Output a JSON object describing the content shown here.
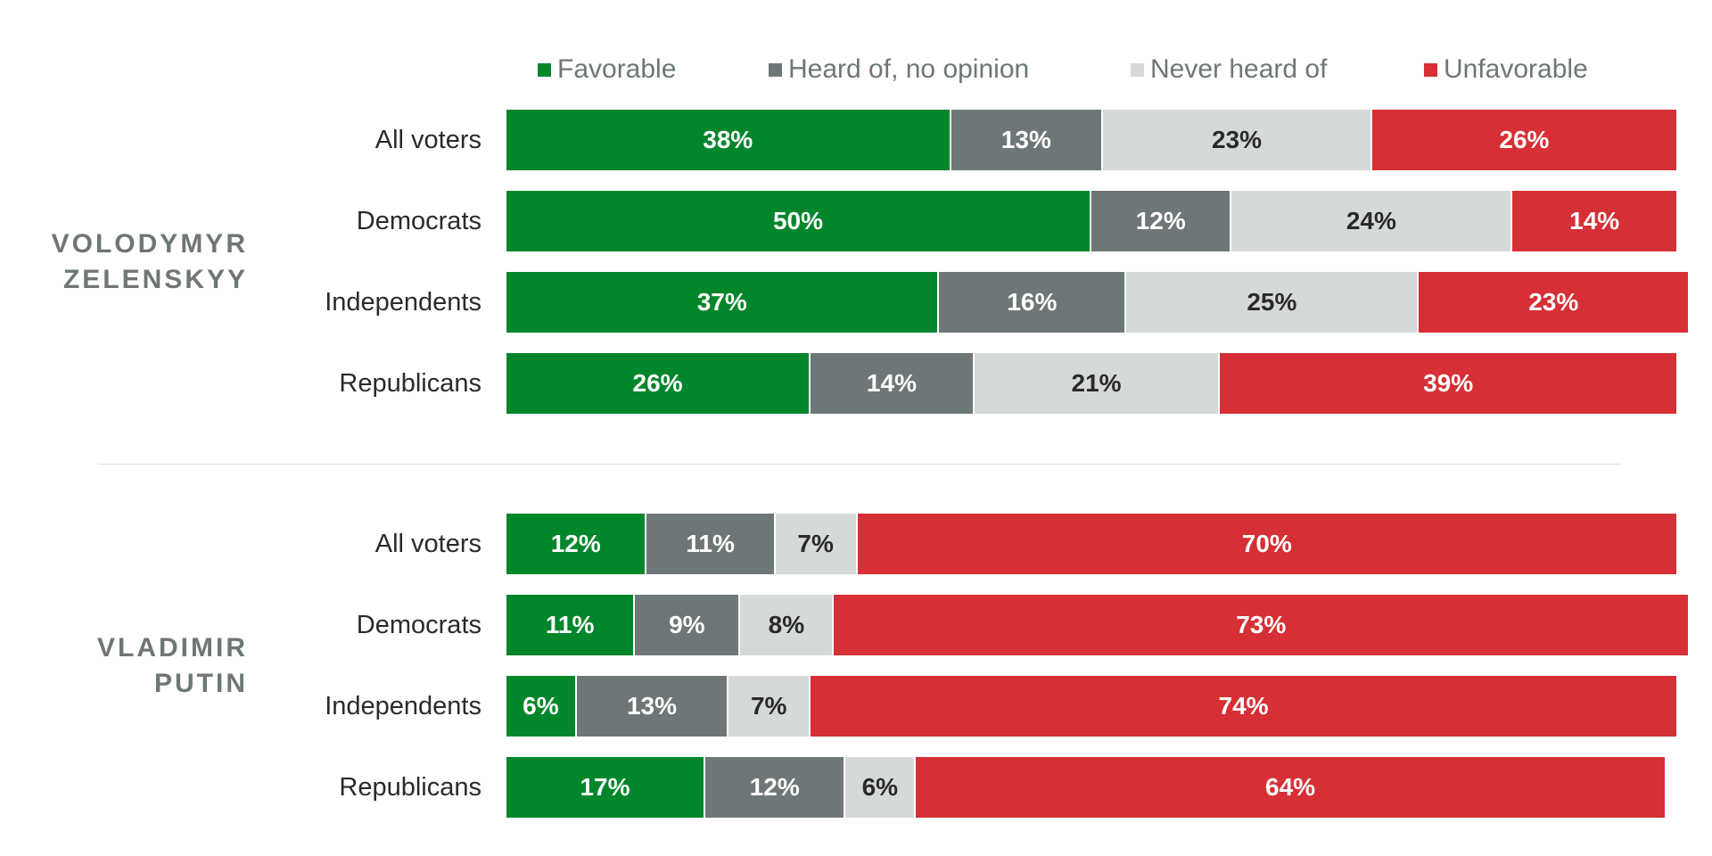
{
  "chart_data": {
    "type": "bar",
    "orientation": "horizontal",
    "stacked": true,
    "normalized": true,
    "xlim": [
      0,
      100
    ],
    "legend": {
      "placement": "top",
      "entries": [
        {
          "key": "favorable",
          "label": "Favorable",
          "color": "#02862b",
          "text_color": "#ffffff"
        },
        {
          "key": "no_opinion",
          "label": "Heard of, no opinion",
          "color": "#6e7777",
          "text_color": "#ffffff"
        },
        {
          "key": "never_heard",
          "label": "Never heard of",
          "color": "#d6d9da",
          "text_color": "#2a2a2a"
        },
        {
          "key": "unfavorable",
          "label": "Unfavorable",
          "color": "#d62f35",
          "text_color": "#ffffff"
        }
      ]
    },
    "panels": [
      {
        "title_lines": [
          "VOLODYMYR",
          "ZELENSKYY"
        ],
        "categories": [
          "All voters",
          "Democrats",
          "Independents",
          "Republicans"
        ],
        "series": [
          {
            "name": "Favorable",
            "values": [
              38,
              50,
              37,
              26
            ]
          },
          {
            "name": "Heard of, no opinion",
            "values": [
              13,
              12,
              16,
              14
            ]
          },
          {
            "name": "Never heard of",
            "values": [
              23,
              24,
              25,
              21
            ]
          },
          {
            "name": "Unfavorable",
            "values": [
              26,
              14,
              23,
              39
            ]
          }
        ]
      },
      {
        "title_lines": [
          "VLADIMIR",
          "PUTIN"
        ],
        "categories": [
          "All voters",
          "Democrats",
          "Independents",
          "Republicans"
        ],
        "series": [
          {
            "name": "Favorable",
            "values": [
              12,
              11,
              6,
              17
            ]
          },
          {
            "name": "Heard of, no opinion",
            "values": [
              11,
              9,
              13,
              12
            ]
          },
          {
            "name": "Never heard of",
            "values": [
              7,
              8,
              7,
              6
            ]
          },
          {
            "name": "Unfavorable",
            "values": [
              70,
              73,
              74,
              64
            ]
          }
        ]
      }
    ],
    "value_suffix": "%"
  }
}
